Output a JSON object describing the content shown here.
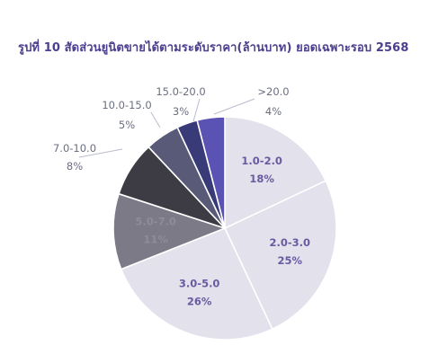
{
  "chart_title": "รูปที่ 10 สัดส่วนยูนิตขายได้ตามระดับราคา(ล้านบาท) ยอดเฉพาะรอบ 2568",
  "colors": {
    "title": "#4b3f8f",
    "inside_label": "#6a5aa0",
    "outside_label": "#6b6e80",
    "leader_line": "#b9bccc"
  },
  "chart_data": {
    "type": "pie",
    "title": "รูปที่ 10 สัดส่วนยูนิตขายได้ตามระดับราคา(ล้านบาท) ยอดเฉพาะรอบ 2568",
    "unit": "%",
    "slices": [
      {
        "label": "1.0-2.0",
        "value": 18,
        "value_label": "18%",
        "color": "#e2e1ec",
        "label_position": "inside"
      },
      {
        "label": "2.0-3.0",
        "value": 25,
        "value_label": "25%",
        "color": "#e2e1ec",
        "label_position": "inside"
      },
      {
        "label": "3.0-5.0",
        "value": 26,
        "value_label": "26%",
        "color": "#e2e1ec",
        "label_position": "inside"
      },
      {
        "label": "5.0-7.0",
        "value": 11,
        "value_label": "11%",
        "color": "#7b7a86",
        "label_position": "inside"
      },
      {
        "label": "7.0-10.0",
        "value": 8,
        "value_label": "8%",
        "color": "#3d3c44",
        "label_position": "outside"
      },
      {
        "label": "10.0-15.0",
        "value": 5,
        "value_label": "5%",
        "color": "#595a78",
        "label_position": "outside"
      },
      {
        "label": "15.0-20.0",
        "value": 3,
        "value_label": "3%",
        "color": "#393a78",
        "label_position": "outside"
      },
      {
        "label": ">20.0",
        "value": 4,
        "value_label": "4%",
        "color": "#5b53b4",
        "label_position": "outside"
      }
    ],
    "start_angle_deg": 0,
    "direction": "clockwise",
    "legend": "none"
  }
}
